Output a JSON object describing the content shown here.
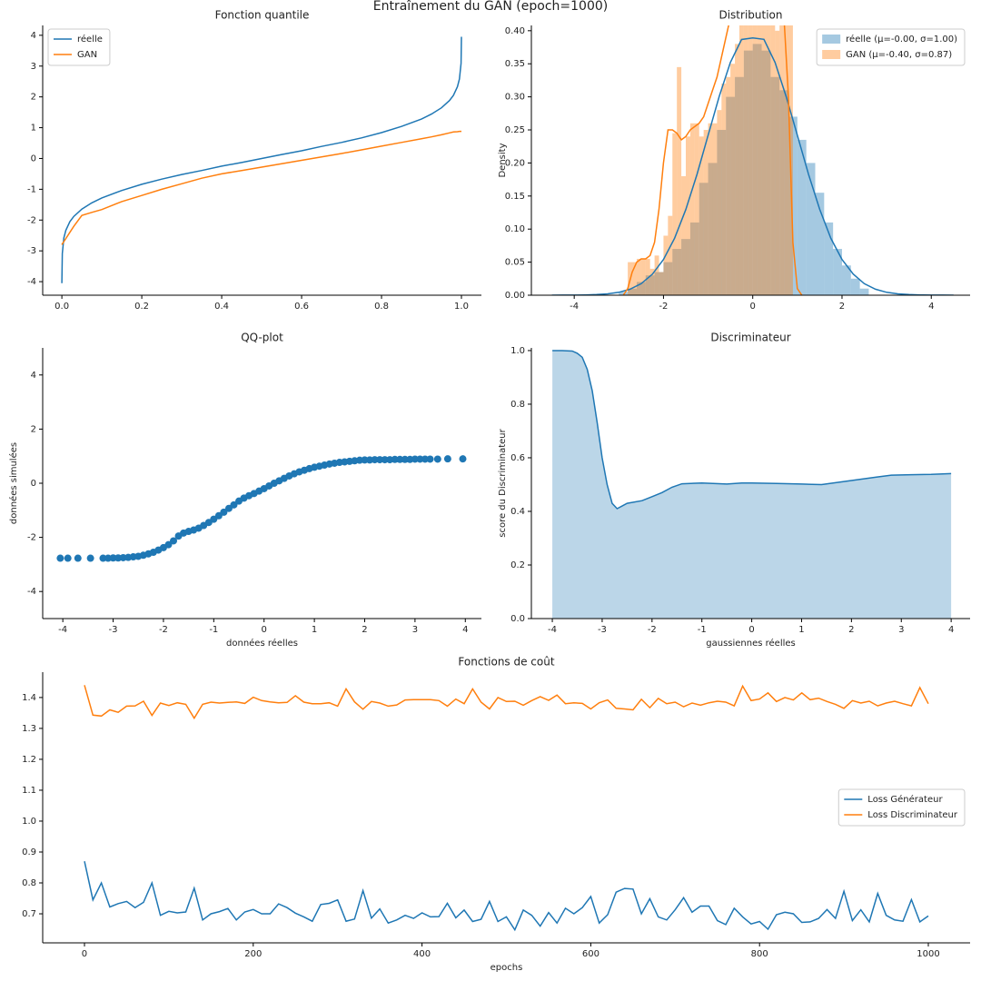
{
  "title": "Entraînement du GAN (epoch=1000)",
  "chart_data": [
    {
      "type": "line",
      "title": "Fonction quantile",
      "legend": "upper left",
      "xlim": [
        -0.048,
        1.05
      ],
      "ylim": [
        -4.44,
        4.32
      ],
      "xticks": [
        {
          "value": 0,
          "label": "0.0"
        },
        0.2,
        0.4,
        0.6,
        0.8,
        {
          "value": 1,
          "label": "1.0"
        }
      ],
      "yticks": [
        4,
        3,
        2,
        1,
        0,
        -1,
        -2,
        -3,
        -4
      ],
      "x": [
        0,
        0.001,
        0.005,
        0.01,
        0.02,
        0.03,
        0.05,
        0.075,
        0.1,
        0.15,
        0.2,
        0.25,
        0.3,
        0.35,
        0.4,
        0.45,
        0.5,
        0.55,
        0.6,
        0.65,
        0.7,
        0.75,
        0.8,
        0.85,
        0.9,
        0.925,
        0.95,
        0.97,
        0.98,
        0.99,
        0.995,
        0.999,
        1.0
      ],
      "series": [
        {
          "name": "réelle",
          "color": "#1f77b4",
          "values": [
            -4.05,
            -3.09,
            -2.58,
            -2.33,
            -2.05,
            -1.88,
            -1.645,
            -1.44,
            -1.28,
            -1.04,
            -0.84,
            -0.67,
            -0.52,
            -0.39,
            -0.25,
            -0.13,
            0,
            0.13,
            0.25,
            0.39,
            0.52,
            0.67,
            0.84,
            1.04,
            1.28,
            1.44,
            1.645,
            1.88,
            2.05,
            2.33,
            2.58,
            3.09,
            3.95
          ]
        },
        {
          "name": "GAN",
          "color": "#ff7f0e",
          "values": [
            -2.8,
            -2.77,
            -2.7,
            -2.6,
            -2.4,
            -2.2,
            -1.85,
            -1.75,
            -1.66,
            -1.4,
            -1.2,
            -1.0,
            -0.82,
            -0.64,
            -0.5,
            -0.39,
            -0.28,
            -0.17,
            -0.06,
            0.05,
            0.16,
            0.28,
            0.4,
            0.52,
            0.64,
            0.7,
            0.77,
            0.83,
            0.86,
            0.87,
            0.88,
            0.88,
            0.88
          ]
        }
      ]
    },
    {
      "type": "histogram",
      "title": "Distribution",
      "ylabel": "Density",
      "legend": "upper right",
      "xlim": [
        -4.96,
        4.87
      ],
      "ylim": [
        0,
        0.408
      ],
      "xticks": [
        -4,
        -2,
        0,
        2,
        4
      ],
      "yticks": [
        {
          "value": 0,
          "label": "0.00"
        },
        {
          "value": 0.05,
          "label": "0.05"
        },
        {
          "value": 0.1,
          "label": "0.10"
        },
        {
          "value": 0.15,
          "label": "0.15"
        },
        {
          "value": 0.2,
          "label": "0.20"
        },
        {
          "value": 0.25,
          "label": "0.25"
        },
        {
          "value": 0.3,
          "label": "0.30"
        },
        {
          "value": 0.35,
          "label": "0.35"
        },
        {
          "value": 0.4,
          "label": "0.40"
        }
      ],
      "histograms": [
        {
          "name": "réelle (μ=-0.00, σ=1.00)",
          "color": "#1f77b4",
          "bins": [
            -3.0,
            -2.8,
            -2.6,
            -2.4,
            -2.2,
            -2.0,
            -1.8,
            -1.6,
            -1.4,
            -1.2,
            -1.0,
            -0.8,
            -0.6,
            -0.4,
            -0.2,
            0.0,
            0.2,
            0.4,
            0.6,
            0.8,
            1.0,
            1.2,
            1.4,
            1.6,
            1.8,
            2.0,
            2.2,
            2.4,
            2.6
          ],
          "values": [
            0.005,
            0.01,
            0.02,
            0.03,
            0.035,
            0.05,
            0.07,
            0.085,
            0.11,
            0.17,
            0.2,
            0.25,
            0.3,
            0.33,
            0.37,
            0.38,
            0.37,
            0.33,
            0.31,
            0.27,
            0.235,
            0.2,
            0.155,
            0.11,
            0.07,
            0.045,
            0.025,
            0.01
          ]
        },
        {
          "name": "GAN (μ=-0.40, σ=0.87)",
          "color": "#ff7f0e",
          "bins": [
            -2.8,
            -2.7,
            -2.6,
            -2.5,
            -2.4,
            -2.3,
            -2.2,
            -2.1,
            -2.0,
            -1.9,
            -1.8,
            -1.7,
            -1.6,
            -1.5,
            -1.4,
            -1.3,
            -1.2,
            -1.1,
            -1.0,
            -0.9,
            -0.8,
            -0.7,
            -0.6,
            -0.5,
            -0.4,
            -0.3,
            -0.2,
            -0.1,
            0.0,
            0.1,
            0.2,
            0.3,
            0.4,
            0.5,
            0.6,
            0.7,
            0.8,
            0.9
          ],
          "values": [
            0.05,
            0.05,
            0.055,
            0.055,
            0.055,
            0.04,
            0.06,
            0.035,
            0.09,
            0.12,
            0.245,
            0.345,
            0.18,
            0.24,
            0.26,
            0.26,
            0.24,
            0.25,
            0.26,
            0.26,
            0.28,
            0.32,
            0.33,
            0.35,
            0.38,
            0.42,
            0.44,
            0.45,
            0.44,
            0.45,
            0.42,
            0.44,
            0.45,
            0.4,
            0.44,
            0.42,
            0.44
          ]
        }
      ],
      "kde": [
        {
          "color": "#1f77b4",
          "x": [
            -4.5,
            -4.25,
            -4,
            -3.75,
            -3.5,
            -3.25,
            -3,
            -2.75,
            -2.5,
            -2.25,
            -2,
            -1.75,
            -1.5,
            -1.25,
            -1,
            -0.75,
            -0.5,
            -0.25,
            0,
            0.25,
            0.5,
            0.75,
            1,
            1.25,
            1.5,
            1.75,
            2,
            2.25,
            2.5,
            2.75,
            3,
            3.25,
            3.5,
            3.75,
            4,
            4.25,
            4.5
          ],
          "values": [
            0,
            0.0001,
            0.0001,
            0.0004,
            0.0009,
            0.002,
            0.0044,
            0.009,
            0.0175,
            0.0317,
            0.054,
            0.0863,
            0.1295,
            0.1826,
            0.242,
            0.3011,
            0.3521,
            0.3867,
            0.389,
            0.387,
            0.352,
            0.3,
            0.242,
            0.183,
            0.13,
            0.086,
            0.054,
            0.032,
            0.0175,
            0.009,
            0.0044,
            0.002,
            0.0009,
            0.0004,
            0.0001,
            0.0001,
            0
          ]
        },
        {
          "color": "#ff7f0e",
          "x": [
            -2.9,
            -2.8,
            -2.7,
            -2.6,
            -2.5,
            -2.4,
            -2.3,
            -2.2,
            -2.1,
            -2.0,
            -1.9,
            -1.8,
            -1.7,
            -1.6,
            -1.5,
            -1.4,
            -1.3,
            -1.2,
            -1.1,
            -1.0,
            -0.9,
            -0.8,
            -0.7,
            -0.6,
            -0.5,
            -0.4,
            -0.3,
            -0.2,
            -0.1,
            0.0,
            0.1,
            0.2,
            0.3,
            0.4,
            0.5,
            0.6,
            0.7,
            0.8,
            0.9,
            1.0,
            1.1
          ],
          "values": [
            0,
            0.01,
            0.035,
            0.05,
            0.055,
            0.055,
            0.06,
            0.08,
            0.13,
            0.2,
            0.25,
            0.25,
            0.245,
            0.235,
            0.24,
            0.25,
            0.255,
            0.26,
            0.27,
            0.29,
            0.31,
            0.33,
            0.36,
            0.39,
            0.42,
            0.45,
            0.47,
            0.48,
            0.49,
            0.49,
            0.49,
            0.48,
            0.48,
            0.48,
            0.47,
            0.45,
            0.42,
            0.3,
            0.08,
            0.01,
            0
          ]
        }
      ]
    },
    {
      "type": "scatter",
      "title": "QQ-plot",
      "xlabel": "données réelles",
      "ylabel": "données simulées",
      "color": "#1f77b4",
      "xlim": [
        -4.4,
        4.32
      ],
      "ylim": [
        -5,
        5
      ],
      "xticks": [
        -4,
        -3,
        -2,
        -1,
        0,
        1,
        2,
        3,
        4
      ],
      "yticks": [
        4,
        2,
        0,
        -2,
        -4
      ],
      "x": [
        -4.05,
        -3.9,
        -3.7,
        -3.45,
        -3.2,
        -3.1,
        -3.0,
        -2.9,
        -2.8,
        -2.7,
        -2.6,
        -2.5,
        -2.4,
        -2.3,
        -2.2,
        -2.1,
        -2.0,
        -1.9,
        -1.8,
        -1.7,
        -1.6,
        -1.5,
        -1.4,
        -1.3,
        -1.2,
        -1.1,
        -1.0,
        -0.9,
        -0.8,
        -0.7,
        -0.6,
        -0.5,
        -0.4,
        -0.3,
        -0.2,
        -0.1,
        0,
        0.1,
        0.2,
        0.3,
        0.4,
        0.5,
        0.6,
        0.7,
        0.8,
        0.9,
        1.0,
        1.1,
        1.2,
        1.3,
        1.4,
        1.5,
        1.6,
        1.7,
        1.8,
        1.9,
        2.0,
        2.1,
        2.2,
        2.3,
        2.4,
        2.5,
        2.6,
        2.7,
        2.8,
        2.9,
        3.0,
        3.1,
        3.2,
        3.3,
        3.45,
        3.65,
        3.95
      ],
      "values": [
        -2.77,
        -2.77,
        -2.77,
        -2.77,
        -2.77,
        -2.77,
        -2.76,
        -2.76,
        -2.75,
        -2.74,
        -2.72,
        -2.7,
        -2.66,
        -2.61,
        -2.55,
        -2.47,
        -2.38,
        -2.27,
        -2.13,
        -1.95,
        -1.84,
        -1.78,
        -1.73,
        -1.66,
        -1.56,
        -1.45,
        -1.33,
        -1.2,
        -1.07,
        -0.93,
        -0.8,
        -0.66,
        -0.55,
        -0.46,
        -0.38,
        -0.29,
        -0.2,
        -0.1,
        0.0,
        0.09,
        0.18,
        0.27,
        0.35,
        0.42,
        0.48,
        0.54,
        0.59,
        0.63,
        0.67,
        0.71,
        0.74,
        0.77,
        0.79,
        0.81,
        0.83,
        0.85,
        0.86,
        0.86,
        0.87,
        0.87,
        0.87,
        0.87,
        0.88,
        0.88,
        0.88,
        0.88,
        0.89,
        0.89,
        0.89,
        0.89,
        0.89,
        0.9,
        0.9
      ]
    },
    {
      "type": "area",
      "title": "Discriminateur",
      "xlabel": "gaussiennes réelles",
      "ylabel": "score du Discriminateur",
      "color": "#1f77b4",
      "xlim": [
        -4.42,
        4.38
      ],
      "ylim": [
        0,
        1.01
      ],
      "xticks": [
        -4,
        -3,
        -2,
        -1,
        0,
        1,
        2,
        3,
        4
      ],
      "yticks": [
        {
          "value": 0,
          "label": "0.0"
        },
        0.2,
        0.4,
        0.6,
        0.8,
        {
          "value": 1,
          "label": "1.0"
        }
      ],
      "x": [
        -4,
        -3.8,
        -3.6,
        -3.5,
        -3.4,
        -3.3,
        -3.2,
        -3.1,
        -3.0,
        -2.9,
        -2.8,
        -2.7,
        -2.6,
        -2.5,
        -2.2,
        -2.0,
        -1.8,
        -1.6,
        -1.4,
        -1.0,
        -0.5,
        -0.2,
        0,
        0.5,
        1.0,
        1.4,
        2.0,
        2.5,
        2.8,
        3.2,
        3.6,
        4.0
      ],
      "values": [
        1.0,
        1.0,
        0.998,
        0.99,
        0.975,
        0.93,
        0.85,
        0.73,
        0.6,
        0.5,
        0.43,
        0.41,
        0.42,
        0.43,
        0.44,
        0.455,
        0.47,
        0.49,
        0.503,
        0.506,
        0.502,
        0.506,
        0.506,
        0.504,
        0.502,
        0.5,
        0.515,
        0.528,
        0.535,
        0.537,
        0.538,
        0.541
      ]
    },
    {
      "type": "line",
      "title": "Fonctions de coût",
      "xlabel": "epochs",
      "legend": "center right",
      "xlim": [
        -49.5,
        1049.5
      ],
      "ylim": [
        0.606,
        1.482
      ],
      "xticks": [
        0,
        200,
        400,
        600,
        800,
        1000
      ],
      "yticks": [
        0.7,
        0.8,
        0.9,
        {
          "value": 1,
          "label": "1.0"
        },
        1.1,
        1.2,
        1.3,
        1.4
      ],
      "x": [
        0,
        10,
        20,
        30,
        40,
        50,
        60,
        70,
        80,
        90,
        100,
        110,
        120,
        130,
        140,
        150,
        160,
        170,
        180,
        190,
        200,
        210,
        220,
        230,
        240,
        250,
        260,
        270,
        280,
        290,
        300,
        310,
        320,
        330,
        340,
        350,
        360,
        370,
        380,
        390,
        400,
        410,
        420,
        430,
        440,
        450,
        460,
        470,
        480,
        490,
        500,
        510,
        520,
        530,
        540,
        550,
        560,
        570,
        580,
        590,
        600,
        610,
        620,
        630,
        640,
        650,
        660,
        670,
        680,
        690,
        700,
        710,
        720,
        730,
        740,
        750,
        760,
        770,
        780,
        790,
        800,
        810,
        820,
        830,
        840,
        850,
        860,
        870,
        880,
        890,
        900,
        910,
        920,
        930,
        940,
        950,
        960,
        970,
        980,
        990,
        1000
      ],
      "series": [
        {
          "name": "Loss Générateur",
          "color": "#1f77b4",
          "values": [
            0.87,
            0.745,
            0.8,
            0.722,
            0.733,
            0.74,
            0.72,
            0.737,
            0.8,
            0.695,
            0.708,
            0.703,
            0.706,
            0.783,
            0.68,
            0.7,
            0.707,
            0.717,
            0.68,
            0.706,
            0.714,
            0.7,
            0.7,
            0.732,
            0.72,
            0.702,
            0.69,
            0.676,
            0.73,
            0.734,
            0.745,
            0.676,
            0.683,
            0.775,
            0.686,
            0.716,
            0.67,
            0.68,
            0.695,
            0.685,
            0.703,
            0.69,
            0.691,
            0.734,
            0.687,
            0.712,
            0.675,
            0.682,
            0.74,
            0.675,
            0.69,
            0.648,
            0.712,
            0.695,
            0.66,
            0.704,
            0.67,
            0.718,
            0.7,
            0.72,
            0.756,
            0.67,
            0.697,
            0.77,
            0.782,
            0.78,
            0.7,
            0.749,
            0.69,
            0.68,
            0.713,
            0.752,
            0.705,
            0.725,
            0.725,
            0.678,
            0.665,
            0.718,
            0.69,
            0.667,
            0.675,
            0.65,
            0.697,
            0.705,
            0.7,
            0.672,
            0.674,
            0.685,
            0.714,
            0.685,
            0.773,
            0.678,
            0.713,
            0.674,
            0.766,
            0.695,
            0.68,
            0.676,
            0.746,
            0.674,
            0.693
          ]
        },
        {
          "name": "Loss Discriminateur",
          "color": "#ff7f0e",
          "values": [
            1.44,
            1.343,
            1.34,
            1.36,
            1.352,
            1.372,
            1.373,
            1.388,
            1.342,
            1.382,
            1.374,
            1.383,
            1.378,
            1.333,
            1.378,
            1.385,
            1.382,
            1.384,
            1.386,
            1.381,
            1.401,
            1.39,
            1.386,
            1.383,
            1.384,
            1.406,
            1.385,
            1.38,
            1.38,
            1.383,
            1.372,
            1.428,
            1.386,
            1.362,
            1.387,
            1.382,
            1.372,
            1.376,
            1.392,
            1.393,
            1.393,
            1.393,
            1.39,
            1.372,
            1.395,
            1.38,
            1.428,
            1.385,
            1.363,
            1.4,
            1.387,
            1.388,
            1.375,
            1.39,
            1.403,
            1.391,
            1.408,
            1.38,
            1.383,
            1.381,
            1.363,
            1.383,
            1.392,
            1.365,
            1.363,
            1.36,
            1.394,
            1.367,
            1.397,
            1.38,
            1.385,
            1.37,
            1.382,
            1.375,
            1.383,
            1.388,
            1.385,
            1.373,
            1.437,
            1.39,
            1.395,
            1.415,
            1.387,
            1.4,
            1.392,
            1.415,
            1.393,
            1.398,
            1.387,
            1.378,
            1.365,
            1.39,
            1.382,
            1.388,
            1.373,
            1.382,
            1.388,
            1.38,
            1.373,
            1.432,
            1.38
          ]
        }
      ]
    }
  ]
}
